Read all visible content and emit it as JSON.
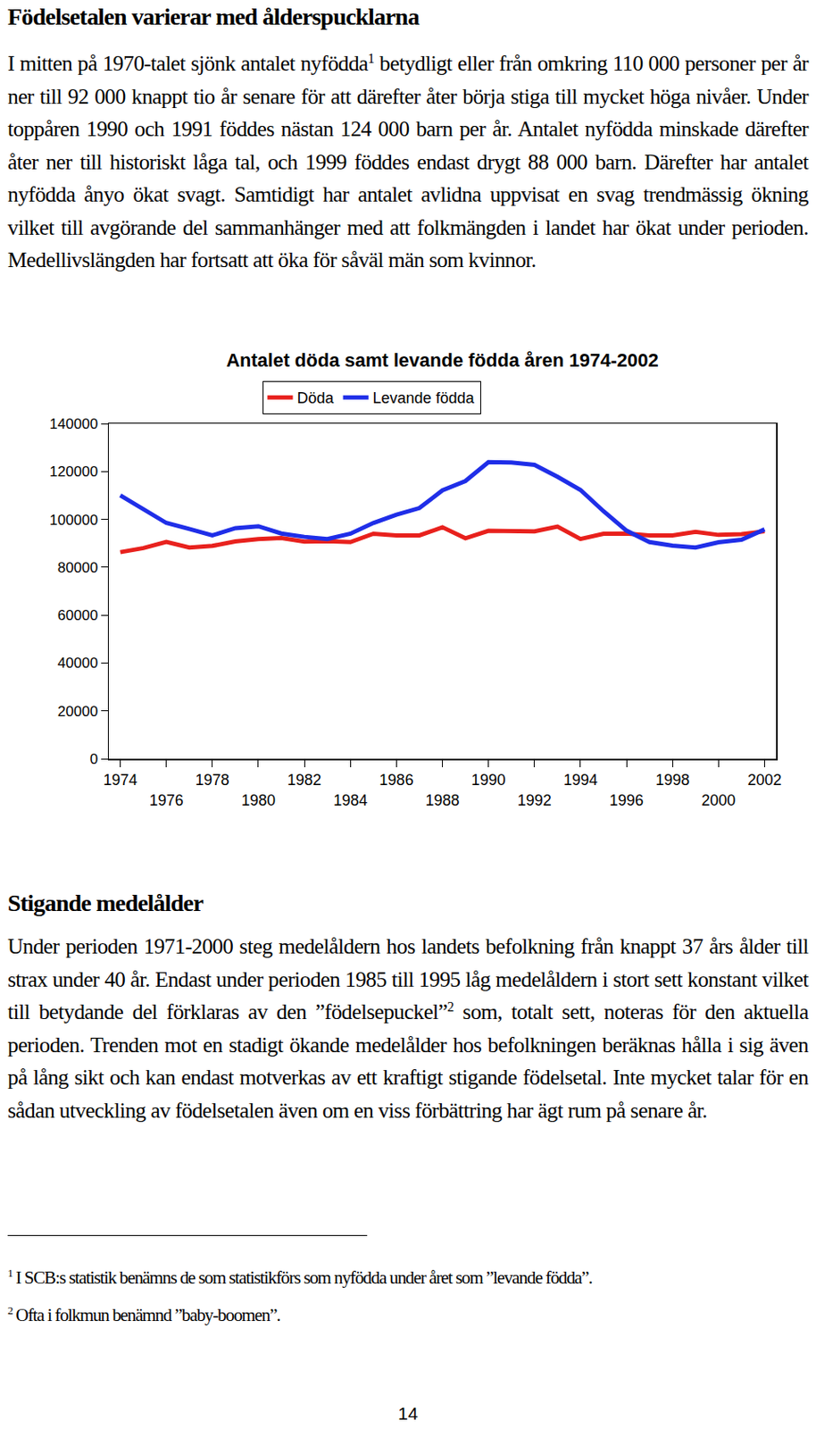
{
  "heading": "Födelsetalen varierar med ålderspucklarna",
  "paragraph_1": [
    "I mitten på 1970-talet sjönk antalet nyfödda",
    {
      "sup": 1
    },
    " betydligt eller från omkring 110 000 personer per år ner till 92 000 knappt tio år senare för att därefter åter börja stiga till mycket höga nivåer. Under toppåren 1990 och 1991 föddes nästan 124 000 barn per år. Antalet nyfödda minskade därefter åter ner till historiskt låga tal, och 1999 föddes endast drygt 88 000 barn. Därefter har antalet nyfödda ånyo ökat svagt. Samtidigt har antalet avlidna uppvisat en svag trendmässig ökning vilket till avgörande del sammanhänger med att folkmängden i landet har ökat under perioden. Medellivslängden har fortsatt att öka för såväl män som kvinnor."
  ],
  "chart_data": {
    "type": "line",
    "title": "Antalet döda samt levande födda åren 1974-2002",
    "x": [
      1974,
      1975,
      1976,
      1977,
      1978,
      1979,
      1980,
      1981,
      1982,
      1983,
      1984,
      1985,
      1986,
      1987,
      1988,
      1989,
      1990,
      1991,
      1992,
      1993,
      1994,
      1995,
      1996,
      1997,
      1998,
      1999,
      2000,
      2001,
      2002
    ],
    "series": [
      {
        "name": "Döda",
        "color": "#e8211d",
        "values": [
          86300,
          88000,
          90600,
          88200,
          88900,
          90800,
          91800,
          92200,
          90700,
          90900,
          90500,
          94000,
          93300,
          93300,
          96700,
          92100,
          95200,
          95000,
          95000,
          97000,
          91800,
          94000,
          94100,
          93300,
          93300,
          94800,
          93500,
          93800,
          95000
        ]
      },
      {
        "name": "Levande födda",
        "color": "#1f2ee8",
        "values": [
          110000,
          104000,
          98500,
          96000,
          93300,
          96300,
          97100,
          94100,
          92700,
          91800,
          94000,
          98500,
          101900,
          104700,
          112100,
          116000,
          123900,
          123700,
          122800,
          117800,
          112300,
          103400,
          95300,
          90500,
          89000,
          88200,
          90400,
          91500,
          95800
        ]
      }
    ],
    "xlim": [
      1973.5,
      2002.5
    ],
    "xticks": [
      1974,
      1976,
      1978,
      1980,
      1982,
      1984,
      1986,
      1988,
      1990,
      1992,
      1994,
      1996,
      1998,
      2000,
      2002
    ],
    "ylim": [
      0,
      140000
    ],
    "yticks": [
      0,
      20000,
      40000,
      60000,
      80000,
      100000,
      120000,
      140000
    ],
    "legend": "top",
    "grid": false
  },
  "heading_2": "Stigande medelålder",
  "paragraph_2": [
    "Under perioden 1971-2000 steg medelåldern hos landets befolkning från knappt 37 års ålder till strax under 40 år. Endast under perioden 1985 till 1995 låg medelåldern i stort sett konstant vilket till betydande del förklaras av den ”födelsepuckel”",
    {
      "sup": 2
    },
    " som, totalt sett, noteras för den aktuella perioden. Trenden mot en stadigt ökande medelålder hos befolkningen beräknas hålla i sig även på lång sikt och kan endast motverkas av ett kraftigt stigande födelsetal. Inte mycket talar för en sådan utveckling av födelsetalen även om en viss förbättring har ägt rum på senare år."
  ],
  "footnotes": [
    {
      "number": 1,
      "text": "I SCB:s statistik benämns de som statistikförs som nyfödda under året som ”levande födda”."
    },
    {
      "number": 2,
      "text": "Ofta i folkmun benämnd ”baby-boomen”."
    }
  ],
  "page_number": 14
}
